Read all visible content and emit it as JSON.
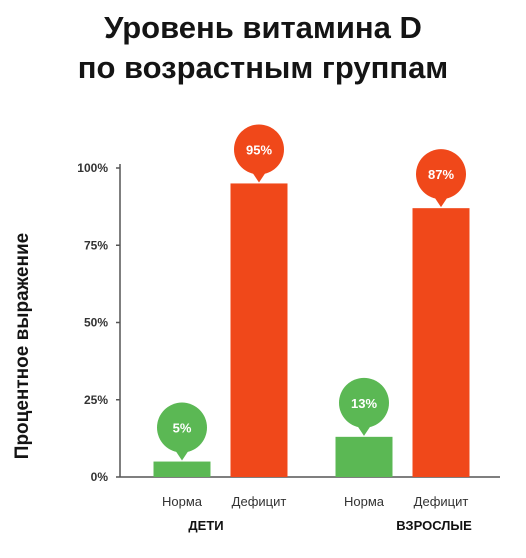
{
  "title_line1": "Уровень витамина D",
  "title_line2": "по возрастным группам",
  "chart_data": {
    "type": "bar",
    "title": "Уровень витамина D по возрастным группам",
    "ylabel": "Процентное выражение",
    "xlabel": "",
    "ylim": [
      0,
      100
    ],
    "yticks": [
      "0%",
      "25%",
      "50%",
      "75%",
      "100%"
    ],
    "grid": false,
    "groups": [
      {
        "name": "ДЕТИ",
        "bars": [
          {
            "category": "Норма",
            "value": 5,
            "label": "5%",
            "color": "#5bb854"
          },
          {
            "category": "Дефицит",
            "value": 95,
            "label": "95%",
            "color": "#f0481a"
          }
        ]
      },
      {
        "name": "ВЗРОСЛЫЕ",
        "bars": [
          {
            "category": "Норма",
            "value": 13,
            "label": "13%",
            "color": "#5bb854"
          },
          {
            "category": "Дефицит",
            "value": 87,
            "label": "87%",
            "color": "#f0481a"
          }
        ]
      }
    ],
    "colors": {
      "norm": "#5bb854",
      "deficit": "#f0481a",
      "axis": "#555555"
    }
  }
}
